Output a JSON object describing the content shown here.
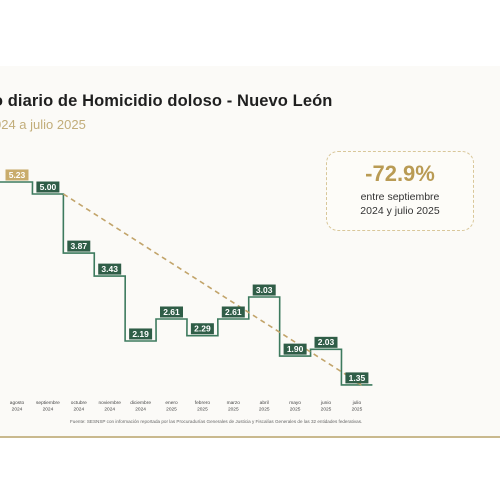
{
  "title": "dio diario de Homicidio doloso - Nuevo León",
  "subtitle": "024 a julio 2025",
  "stat": {
    "value": "-72.9%",
    "line1": "entre septiembre",
    "line2": "2024 y julio 2025"
  },
  "source": "Fuente: SESNSP con información reportada por las Procuradurías Generales de Justicia y Fiscalías Generales de las 32 entidades federativas.",
  "colors": {
    "line": "#3d7a5e",
    "label_fill": "#2f5d47",
    "highlight_fill": "#c9ac6c",
    "trend": "#c2a46a"
  },
  "chart_data": {
    "type": "line",
    "step": true,
    "categories": [
      [
        "agosto",
        "2024"
      ],
      [
        "septiembre",
        "2024"
      ],
      [
        "octubre",
        "2024"
      ],
      [
        "noviembre",
        "2024"
      ],
      [
        "diciembre",
        "2024"
      ],
      [
        "enero",
        "2025"
      ],
      [
        "febrero",
        "2025"
      ],
      [
        "marzo",
        "2025"
      ],
      [
        "abril",
        "2025"
      ],
      [
        "mayo",
        "2025"
      ],
      [
        "junio",
        "2025"
      ],
      [
        "julio",
        "2025"
      ]
    ],
    "values": [
      5.23,
      5.0,
      3.87,
      3.43,
      2.19,
      2.61,
      2.29,
      2.61,
      3.03,
      1.9,
      2.03,
      1.35
    ],
    "value_labels": [
      "5.23",
      "5.00",
      "3.87",
      "3.43",
      "2.19",
      "2.61",
      "2.29",
      "2.61",
      "3.03",
      "1.90",
      "2.03",
      "1.35"
    ],
    "highlight_index": 0,
    "trendline": {
      "from_index": 1,
      "to_index": 11
    }
  }
}
